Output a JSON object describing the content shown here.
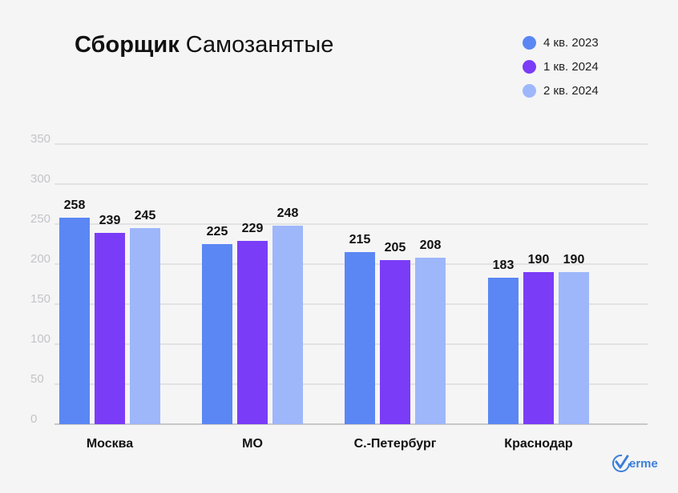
{
  "title": {
    "bold": "Сборщик",
    "rest": "Самозанятые"
  },
  "logo": {
    "text": "erme",
    "icon": "verme-check-icon"
  },
  "chart_data": {
    "type": "bar",
    "title": "Сборщик Самозанятые",
    "xlabel": "",
    "ylabel": "",
    "ylim": [
      0,
      350
    ],
    "yticks": [
      0,
      50,
      100,
      150,
      200,
      250,
      300,
      350
    ],
    "grid": true,
    "legend_position": "top-right",
    "categories": [
      "Москва",
      "МО",
      "С.-Петербург",
      "Краснодар"
    ],
    "series": [
      {
        "name": "4 кв. 2023",
        "color": "#5b87f4",
        "values": [
          258,
          225,
          215,
          183
        ]
      },
      {
        "name": "1 кв. 2024",
        "color": "#7b3cf7",
        "values": [
          239,
          229,
          205,
          190
        ]
      },
      {
        "name": "2 кв. 2024",
        "color": "#9eb7fb",
        "values": [
          245,
          248,
          208,
          190
        ]
      }
    ]
  }
}
